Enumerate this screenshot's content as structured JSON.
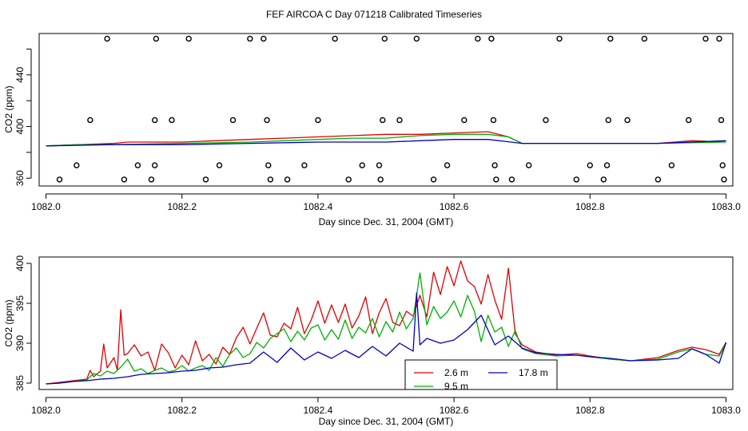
{
  "title": "FEF AIRCOA C  Day 071218  Calibrated Timeseries",
  "chart_data": [
    {
      "type": "line",
      "xlabel": "Day since Dec. 31, 2004 (GMT)",
      "ylabel": "CO2 (ppm)",
      "xlim": [
        1081.99,
        1083.01
      ],
      "ylim": [
        354,
        472
      ],
      "xticks": [
        "1082.0",
        "1082.2",
        "1082.4",
        "1082.6",
        "1082.8",
        "1083.0"
      ],
      "xtick_values": [
        1082.0,
        1082.2,
        1082.4,
        1082.6,
        1082.8,
        1083.0
      ],
      "yticks": [
        "360",
        "400",
        "440"
      ],
      "ytick_values": [
        360,
        400,
        440
      ],
      "yminor_values": [
        380,
        420,
        460
      ],
      "series": [
        {
          "name": "2.6 m",
          "color": "#e00000",
          "x": [
            1082.0,
            1082.05,
            1082.1,
            1082.12,
            1082.2,
            1082.25,
            1082.3,
            1082.35,
            1082.4,
            1082.45,
            1082.5,
            1082.55,
            1082.6,
            1082.65,
            1082.68,
            1082.7,
            1082.8,
            1082.9,
            1082.95,
            1083.0
          ],
          "y": [
            385,
            386,
            387,
            388,
            388,
            389,
            390,
            391,
            392,
            393,
            394,
            394,
            395,
            396,
            392,
            387,
            387,
            387,
            389,
            388
          ]
        },
        {
          "name": "9.5 m",
          "color": "#00b000",
          "x": [
            1082.0,
            1082.05,
            1082.1,
            1082.2,
            1082.3,
            1082.4,
            1082.45,
            1082.5,
            1082.55,
            1082.6,
            1082.65,
            1082.68,
            1082.7,
            1082.8,
            1082.9,
            1083.0
          ],
          "y": [
            385,
            386,
            386,
            387,
            388,
            390,
            391,
            391,
            393,
            394,
            394,
            392,
            387,
            387,
            387,
            388
          ]
        },
        {
          "name": "17.8 m",
          "color": "#0000c0",
          "x": [
            1082.0,
            1082.1,
            1082.2,
            1082.3,
            1082.4,
            1082.5,
            1082.55,
            1082.6,
            1082.65,
            1082.7,
            1082.8,
            1082.9,
            1082.95,
            1083.0
          ],
          "y": [
            385,
            386,
            386,
            387,
            388,
            388,
            389,
            390,
            390,
            387,
            387,
            387,
            388,
            389
          ]
        }
      ],
      "markers": {
        "symbol": "circle",
        "x": [
          1082.02,
          1082.045,
          1082.065,
          1082.09,
          1082.115,
          1082.135,
          1082.155,
          1082.16,
          1082.16,
          1082.162,
          1082.185,
          1082.21,
          1082.235,
          1082.255,
          1082.275,
          1082.3,
          1082.32,
          1082.325,
          1082.327,
          1082.33,
          1082.355,
          1082.38,
          1082.4,
          1082.425,
          1082.445,
          1082.465,
          1082.49,
          1082.492,
          1082.495,
          1082.498,
          1082.52,
          1082.545,
          1082.57,
          1082.59,
          1082.615,
          1082.635,
          1082.655,
          1082.658,
          1082.66,
          1082.662,
          1082.685,
          1082.71,
          1082.735,
          1082.755,
          1082.78,
          1082.8,
          1082.82,
          1082.825,
          1082.827,
          1082.83,
          1082.855,
          1082.88,
          1082.9,
          1082.92,
          1082.945,
          1082.97,
          1082.99,
          1082.993,
          1082.995,
          1082.997
        ],
        "y": [
          359,
          370,
          405,
          468,
          359,
          370,
          359,
          370,
          405,
          468,
          405,
          468,
          359,
          370,
          405,
          468,
          468,
          405,
          370,
          359,
          359,
          370,
          405,
          468,
          359,
          370,
          370,
          359,
          405,
          468,
          405,
          468,
          359,
          370,
          405,
          468,
          468,
          405,
          370,
          359,
          359,
          370,
          405,
          468,
          359,
          370,
          359,
          370,
          405,
          468,
          405,
          468,
          359,
          370,
          405,
          468,
          468,
          405,
          370,
          359
        ]
      }
    },
    {
      "type": "line",
      "xlabel": "Day since Dec. 31, 2004 (GMT)",
      "ylabel": "CO2 (ppm)",
      "xlim": [
        1081.99,
        1083.01
      ],
      "ylim": [
        384.2,
        400.8
      ],
      "xticks": [
        "1082.0",
        "1082.2",
        "1082.4",
        "1082.6",
        "1082.8",
        "1083.0"
      ],
      "xtick_values": [
        1082.0,
        1082.2,
        1082.4,
        1082.6,
        1082.8,
        1083.0
      ],
      "yticks": [
        "385",
        "390",
        "395",
        "400"
      ],
      "ytick_values": [
        385,
        390,
        395,
        400
      ],
      "legend": {
        "position": "bottom-center",
        "entries": [
          "2.6 m",
          "17.8 m",
          "9.5 m"
        ]
      },
      "series": [
        {
          "name": "2.6 m",
          "color": "#e00000",
          "x": [
            1082.0,
            1082.02,
            1082.04,
            1082.06,
            1082.065,
            1082.07,
            1082.08,
            1082.085,
            1082.09,
            1082.1,
            1082.105,
            1082.11,
            1082.115,
            1082.12,
            1082.13,
            1082.14,
            1082.15,
            1082.16,
            1082.17,
            1082.18,
            1082.19,
            1082.2,
            1082.21,
            1082.22,
            1082.23,
            1082.24,
            1082.25,
            1082.26,
            1082.27,
            1082.28,
            1082.29,
            1082.3,
            1082.31,
            1082.32,
            1082.33,
            1082.34,
            1082.35,
            1082.36,
            1082.37,
            1082.38,
            1082.39,
            1082.4,
            1082.41,
            1082.42,
            1082.43,
            1082.44,
            1082.45,
            1082.46,
            1082.47,
            1082.48,
            1082.49,
            1082.5,
            1082.51,
            1082.52,
            1082.53,
            1082.54,
            1082.55,
            1082.56,
            1082.57,
            1082.58,
            1082.59,
            1082.6,
            1082.61,
            1082.62,
            1082.63,
            1082.64,
            1082.65,
            1082.66,
            1082.67,
            1082.68,
            1082.69,
            1082.7,
            1082.72,
            1082.75,
            1082.78,
            1082.8,
            1082.83,
            1082.86,
            1082.9,
            1082.93,
            1082.95,
            1082.97,
            1082.99,
            1083.0
          ],
          "y": [
            384.9,
            385.1,
            385.3,
            385.5,
            386.6,
            385.8,
            386.5,
            389.9,
            386.9,
            388.2,
            386.6,
            394.2,
            388.5,
            388.7,
            389.8,
            388.4,
            388.9,
            386.6,
            389.9,
            388.8,
            386.9,
            388.5,
            387.3,
            390.3,
            387.8,
            388.6,
            387.4,
            389.5,
            388.6,
            390.7,
            392.0,
            389.9,
            391.9,
            393.8,
            391.0,
            390.8,
            392.5,
            391.8,
            394.5,
            391.2,
            392.9,
            395.3,
            392.5,
            394.8,
            392.6,
            394.9,
            391.9,
            393.4,
            395.8,
            391.2,
            393.8,
            395.6,
            392.6,
            392.2,
            394.0,
            393.4,
            396.0,
            393.3,
            398.9,
            396.1,
            399.6,
            397.2,
            400.3,
            397.8,
            397.1,
            394.9,
            398.6,
            395.4,
            393.0,
            399.4,
            391.2,
            389.8,
            388.9,
            388.5,
            388.7,
            388.4,
            388.0,
            387.8,
            388.2,
            389.1,
            389.5,
            389.2,
            388.6,
            390.1
          ]
        },
        {
          "name": "9.5 m",
          "color": "#00b000",
          "x": [
            1082.0,
            1082.02,
            1082.04,
            1082.06,
            1082.07,
            1082.08,
            1082.09,
            1082.1,
            1082.11,
            1082.12,
            1082.13,
            1082.14,
            1082.15,
            1082.16,
            1082.17,
            1082.18,
            1082.19,
            1082.2,
            1082.21,
            1082.22,
            1082.23,
            1082.24,
            1082.25,
            1082.26,
            1082.27,
            1082.28,
            1082.29,
            1082.3,
            1082.31,
            1082.32,
            1082.33,
            1082.34,
            1082.35,
            1082.36,
            1082.37,
            1082.38,
            1082.39,
            1082.4,
            1082.41,
            1082.42,
            1082.43,
            1082.44,
            1082.45,
            1082.46,
            1082.47,
            1082.48,
            1082.49,
            1082.5,
            1082.51,
            1082.52,
            1082.53,
            1082.54,
            1082.55,
            1082.56,
            1082.57,
            1082.58,
            1082.59,
            1082.6,
            1082.61,
            1082.62,
            1082.63,
            1082.64,
            1082.65,
            1082.66,
            1082.67,
            1082.68,
            1082.69,
            1082.7,
            1082.72,
            1082.75,
            1082.78,
            1082.8,
            1082.83,
            1082.86,
            1082.9,
            1082.93,
            1082.95,
            1082.97,
            1082.99,
            1083.0
          ],
          "y": [
            384.9,
            385.0,
            385.2,
            385.4,
            386.2,
            385.9,
            386.5,
            386.2,
            387.0,
            388.0,
            386.5,
            386.8,
            386.2,
            386.6,
            386.9,
            386.4,
            386.6,
            387.2,
            386.5,
            386.9,
            387.2,
            386.6,
            388.2,
            387.1,
            388.6,
            389.4,
            388.2,
            388.7,
            390.1,
            389.4,
            390.6,
            391.2,
            391.8,
            390.2,
            391.5,
            390.4,
            391.9,
            392.3,
            390.4,
            391.7,
            390.5,
            392.9,
            390.6,
            392.0,
            391.3,
            393.1,
            390.8,
            392.7,
            391.4,
            393.9,
            391.8,
            393.1,
            398.8,
            392.3,
            394.6,
            393.1,
            393.9,
            395.3,
            393.3,
            396.0,
            394.0,
            390.2,
            393.5,
            391.4,
            392.0,
            389.6,
            391.6,
            389.3,
            388.7,
            388.4,
            388.5,
            388.3,
            388.0,
            387.8,
            388.0,
            388.9,
            389.3,
            388.6,
            388.4,
            390.0
          ]
        },
        {
          "name": "17.8 m",
          "color": "#0000c0",
          "x": [
            1082.0,
            1082.02,
            1082.04,
            1082.06,
            1082.08,
            1082.1,
            1082.12,
            1082.14,
            1082.16,
            1082.18,
            1082.2,
            1082.22,
            1082.24,
            1082.26,
            1082.28,
            1082.3,
            1082.32,
            1082.34,
            1082.36,
            1082.38,
            1082.4,
            1082.42,
            1082.44,
            1082.46,
            1082.48,
            1082.5,
            1082.52,
            1082.54,
            1082.545,
            1082.55,
            1082.56,
            1082.58,
            1082.6,
            1082.62,
            1082.64,
            1082.66,
            1082.68,
            1082.7,
            1082.72,
            1082.75,
            1082.78,
            1082.8,
            1082.83,
            1082.86,
            1082.9,
            1082.93,
            1082.95,
            1082.97,
            1082.99,
            1083.0
          ],
          "y": [
            384.9,
            385.0,
            385.2,
            385.3,
            385.5,
            385.6,
            385.8,
            386.1,
            386.2,
            386.3,
            386.5,
            386.6,
            386.9,
            387.0,
            387.3,
            387.5,
            388.9,
            387.6,
            389.4,
            387.9,
            388.9,
            388.1,
            389.1,
            388.2,
            389.6,
            388.4,
            390.0,
            389.0,
            396.3,
            389.8,
            390.6,
            390.0,
            390.4,
            391.7,
            393.5,
            389.8,
            390.9,
            389.4,
            388.8,
            388.6,
            388.5,
            388.3,
            388.1,
            387.8,
            387.9,
            388.1,
            389.3,
            388.6,
            387.5,
            390.1
          ]
        }
      ]
    }
  ]
}
